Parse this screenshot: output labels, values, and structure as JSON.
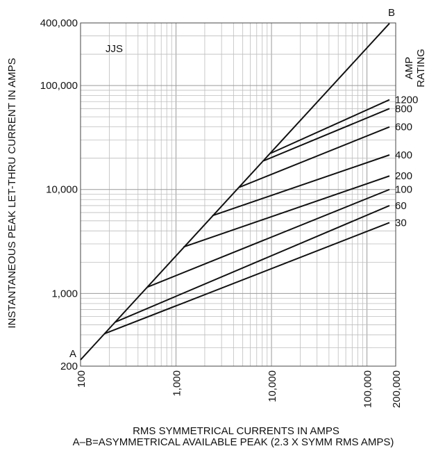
{
  "chart_data": {
    "type": "line",
    "scale": {
      "x": "log",
      "y": "log"
    },
    "xlabel": "RMS SYMMETRICAL CURRENTS IN AMPS",
    "xlabel2": "A–B=ASYMMETRICAL AVAILABLE PEAK (2.3 X SYMM RMS AMPS)",
    "ylabel": "INSTANTANEOUS PEAK LET-THRU CURRENT IN AMPS",
    "xlim": [
      100,
      200000
    ],
    "ylim": [
      200,
      400000
    ],
    "x_ticks": [
      {
        "value": 100,
        "label": "100"
      },
      {
        "value": 1000,
        "label": "1,000"
      },
      {
        "value": 10000,
        "label": "10,000"
      },
      {
        "value": 100000,
        "label": "100,000"
      },
      {
        "value": 200000,
        "label": "200,000"
      }
    ],
    "y_ticks": [
      {
        "value": 200,
        "label": "200"
      },
      {
        "value": 1000,
        "label": "1,000"
      },
      {
        "value": 10000,
        "label": "10,000"
      },
      {
        "value": 100000,
        "label": "100,000"
      },
      {
        "value": 400000,
        "label": "400,000"
      }
    ],
    "grid": true,
    "annotations": {
      "watermark": "JJS",
      "point_a": "A",
      "point_b": "B",
      "rating_header": [
        "AMP",
        "RATING"
      ]
    },
    "asymmetrical_line": {
      "label": "A–B",
      "x": [
        100,
        172000
      ],
      "y": [
        230,
        396000
      ]
    },
    "series": [
      {
        "name": "1200",
        "x": [
          9800,
          172000
        ],
        "y": [
          22300,
          73000
        ]
      },
      {
        "name": "800",
        "x": [
          8300,
          172000
        ],
        "y": [
          18900,
          60000
        ]
      },
      {
        "name": "600",
        "x": [
          4600,
          172000
        ],
        "y": [
          10500,
          40000
        ]
      },
      {
        "name": "400",
        "x": [
          2400,
          172000
        ],
        "y": [
          5600,
          21500
        ]
      },
      {
        "name": "200",
        "x": [
          1200,
          172000
        ],
        "y": [
          2800,
          13500
        ]
      },
      {
        "name": "100",
        "x": [
          500,
          172000
        ],
        "y": [
          1150,
          10000
        ]
      },
      {
        "name": "60",
        "x": [
          230,
          172000
        ],
        "y": [
          530,
          7000
        ]
      },
      {
        "name": "30",
        "x": [
          178,
          172000
        ],
        "y": [
          410,
          4800
        ]
      }
    ]
  }
}
